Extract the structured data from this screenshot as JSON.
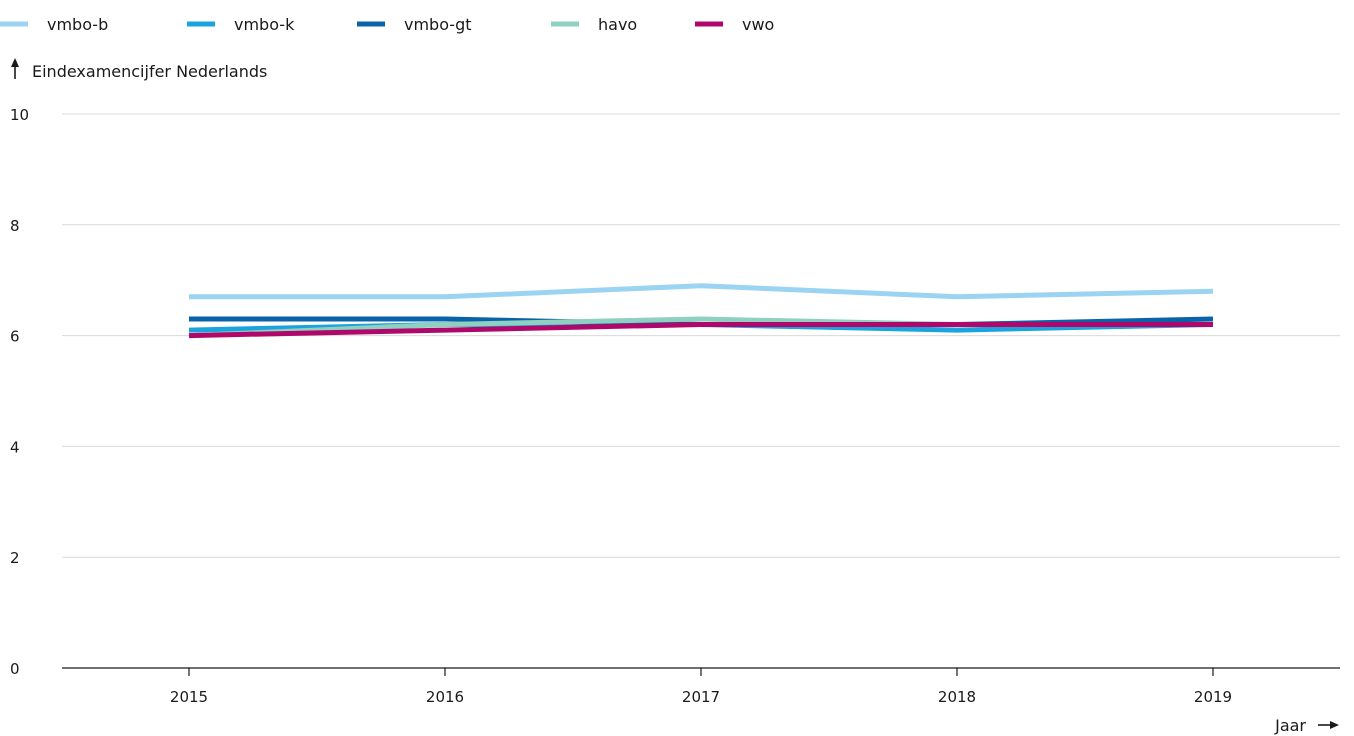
{
  "chart_data": {
    "type": "line",
    "ylabel": "Eindexamencijfer Nederlands",
    "xlabel": "Jaar",
    "x": [
      "2015",
      "2016",
      "2017",
      "2018",
      "2019"
    ],
    "ylim": [
      0,
      10
    ],
    "yticks": [
      "0",
      "2",
      "4",
      "6",
      "8",
      "10"
    ],
    "grid": true,
    "legend_position": "top-left",
    "series": [
      {
        "name": "vmbo-b",
        "color": "#9bd3f2",
        "values": [
          6.7,
          6.7,
          6.9,
          6.7,
          6.8
        ]
      },
      {
        "name": "vmbo-k",
        "color": "#1aa3dd",
        "values": [
          6.1,
          6.2,
          6.2,
          6.1,
          6.2
        ]
      },
      {
        "name": "vmbo-gt",
        "color": "#0a63a8",
        "values": [
          6.3,
          6.3,
          6.2,
          6.2,
          6.3
        ]
      },
      {
        "name": "havo",
        "color": "#8fd0c0",
        "values": [
          6.0,
          6.2,
          6.3,
          6.2,
          6.2
        ]
      },
      {
        "name": "vwo",
        "color": "#b0086a",
        "values": [
          6.0,
          6.1,
          6.2,
          6.2,
          6.2
        ]
      }
    ]
  }
}
